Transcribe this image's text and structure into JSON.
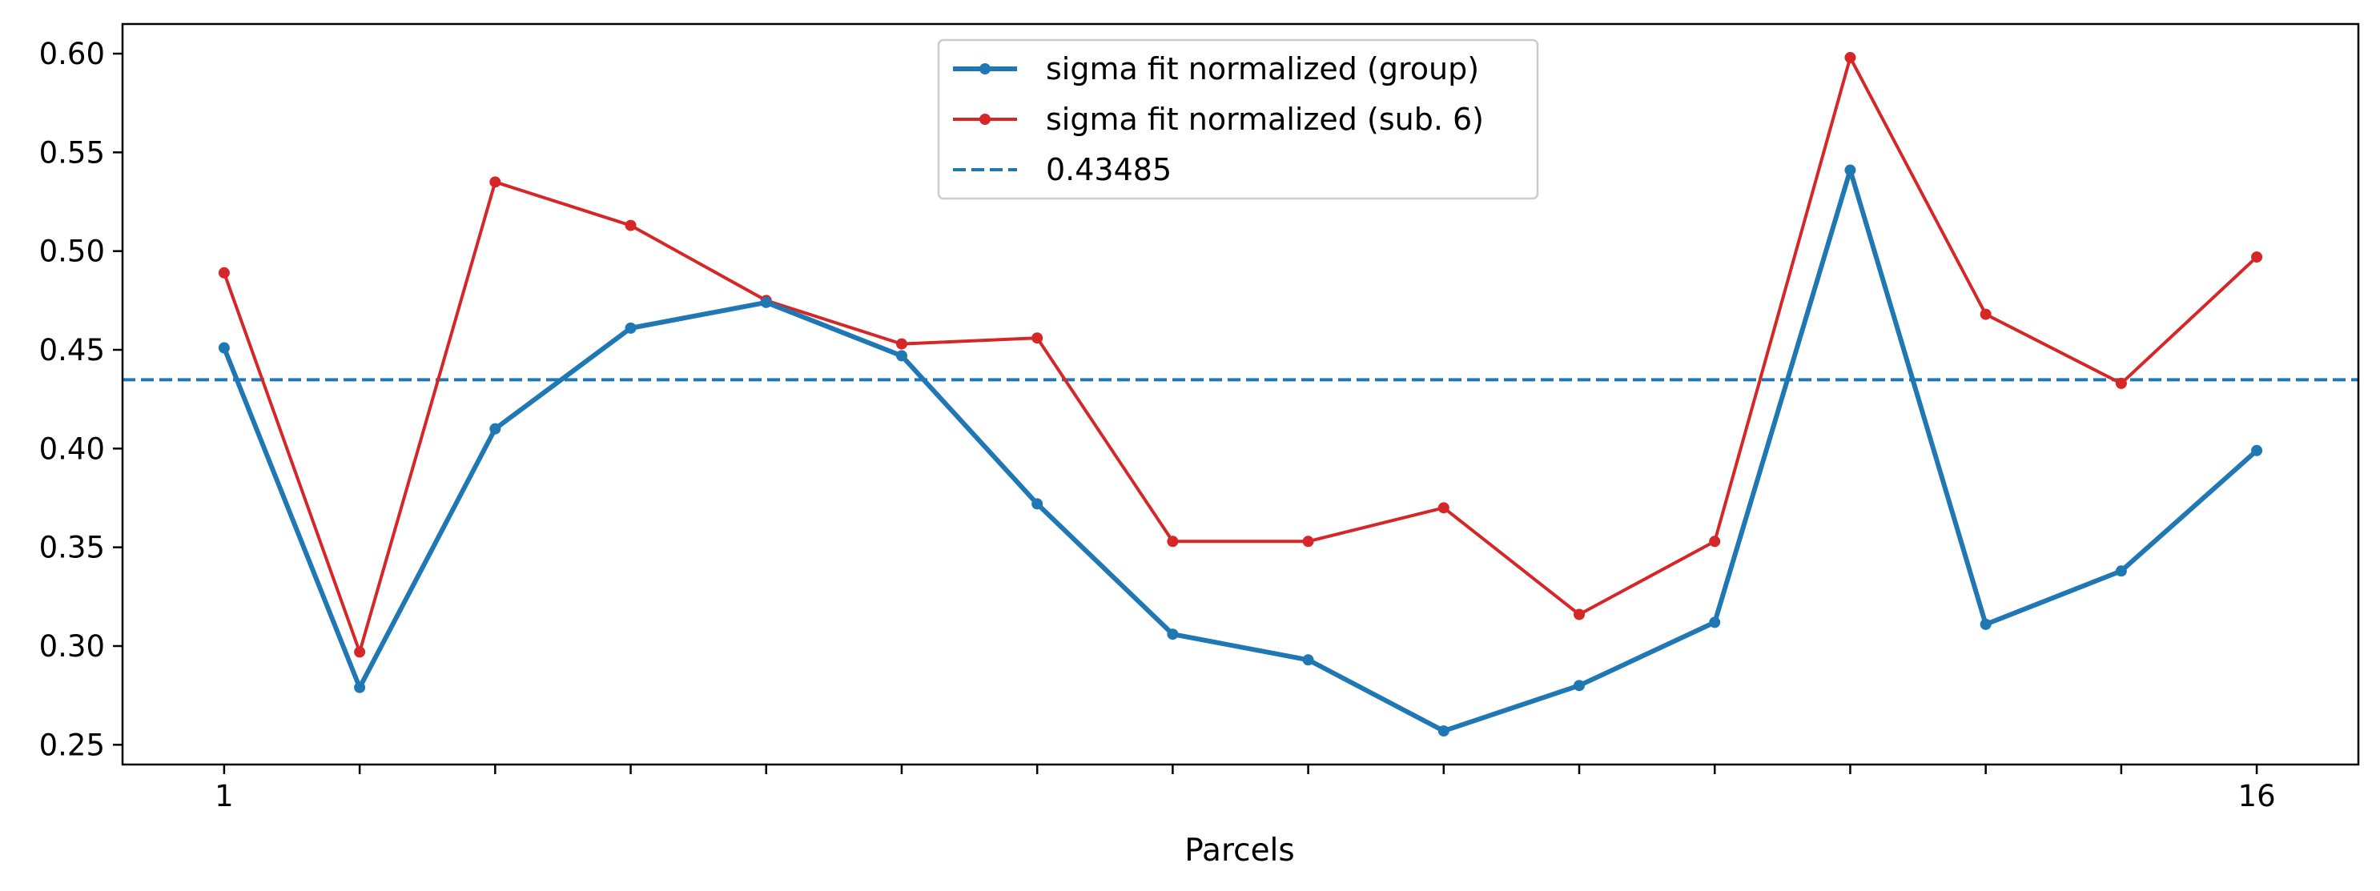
{
  "chart_data": {
    "type": "line",
    "title": "",
    "xlabel": "Parcels",
    "ylabel": "",
    "x": [
      1,
      2,
      3,
      4,
      5,
      6,
      7,
      8,
      9,
      10,
      11,
      12,
      13,
      14,
      15,
      16
    ],
    "x_tick_labels": [
      {
        "x": 1,
        "label": "1"
      },
      {
        "x": 16,
        "label": "16"
      }
    ],
    "xlim": [
      0.25,
      16.75
    ],
    "ylim": [
      0.24,
      0.615
    ],
    "y_ticks": [
      "0.25",
      "0.30",
      "0.35",
      "0.40",
      "0.45",
      "0.50",
      "0.55",
      "0.60"
    ],
    "grid": false,
    "legend_position": "top-center",
    "series": [
      {
        "name": "sigma fit normalized (group)",
        "color": "#1f77b4",
        "style": "solid-thick-markers",
        "values": [
          0.451,
          0.279,
          0.41,
          0.461,
          0.474,
          0.447,
          0.372,
          0.306,
          0.293,
          0.257,
          0.28,
          0.312,
          0.541,
          0.311,
          0.338,
          0.399
        ]
      },
      {
        "name": "sigma fit normalized (sub. 6)",
        "color": "#d62728",
        "style": "solid-markers",
        "values": [
          0.489,
          0.297,
          0.535,
          0.513,
          0.475,
          0.453,
          0.456,
          0.353,
          0.353,
          0.37,
          0.316,
          0.353,
          0.598,
          0.468,
          0.433,
          0.497
        ]
      },
      {
        "name": "0.43485",
        "color": "#1f77b4",
        "style": "dashed-horizontal",
        "y": 0.43485
      }
    ]
  }
}
